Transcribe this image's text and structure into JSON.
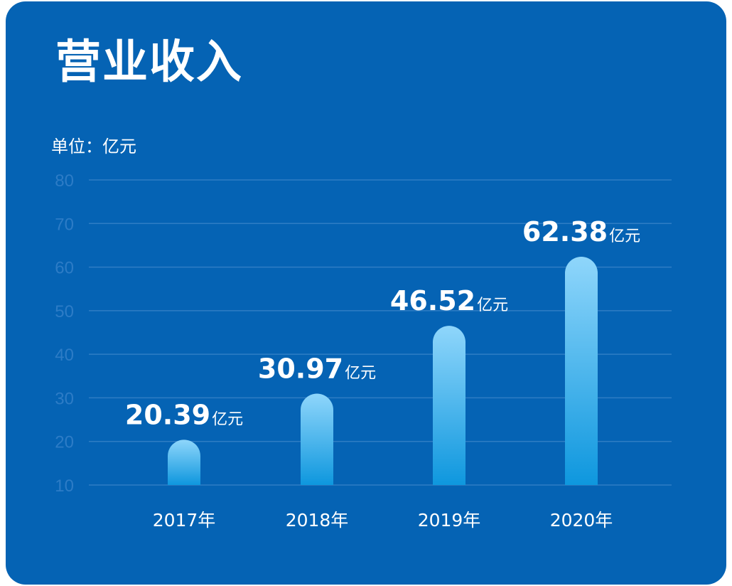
{
  "colors": {
    "background": "#0563b4",
    "grid": "#2f7dc4",
    "tick_text": "#2d7cc6",
    "bar_top": "#8fd6fb",
    "bar_bottom": "#0e97de",
    "text": "#ffffff"
  },
  "chart_data": {
    "type": "bar",
    "title": "营业收入",
    "unit_label": "单位：亿元",
    "categories": [
      "2017年",
      "2018年",
      "2019年",
      "2020年"
    ],
    "values": [
      20.39,
      30.97,
      46.52,
      62.38
    ],
    "value_suffix": "亿元",
    "ylim": [
      10,
      80
    ],
    "yticks": [
      10,
      20,
      30,
      40,
      50,
      60,
      70,
      80
    ],
    "grid": true,
    "legend": "none"
  }
}
